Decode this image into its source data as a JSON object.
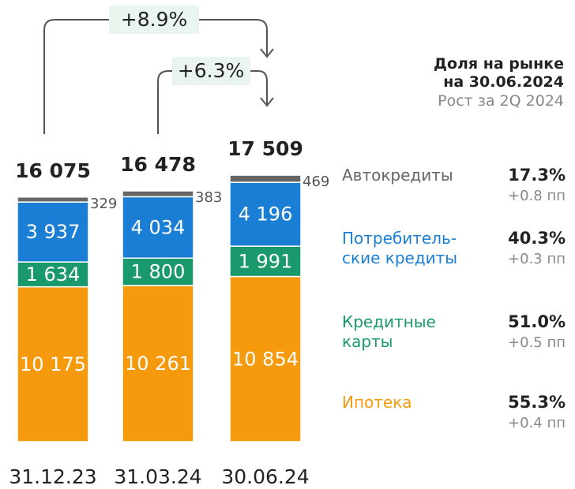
{
  "chart_data": {
    "type": "stacked_bar",
    "categories": [
      "31.12.23",
      "31.03.24",
      "30.06.24"
    ],
    "ylim": [
      0,
      18500
    ],
    "series": [
      {
        "name": "Ипотека",
        "color": "#f59a0c",
        "values": [
          10175,
          10261,
          10854
        ],
        "value_labels": [
          "10 175",
          "10 261",
          "10 854"
        ],
        "share": 55.3,
        "share_label": "55.3%",
        "growth": 0.4,
        "growth_label": "+0.4 пп"
      },
      {
        "name": "Кредитные\nкарты",
        "color": "#1a9a6c",
        "values": [
          1634,
          1800,
          1991
        ],
        "value_labels": [
          "1 634",
          "1 800",
          "1 991"
        ],
        "share": 51.0,
        "share_label": "51.0%",
        "growth": 0.5,
        "growth_label": "+0.5 пп"
      },
      {
        "name": "Потребитель-\nские кредиты",
        "color": "#1a7fd4",
        "values": [
          3937,
          4034,
          4196
        ],
        "value_labels": [
          "3 937",
          "4 034",
          "4 196"
        ],
        "share": 40.3,
        "share_label": "40.3%",
        "growth": 0.3,
        "growth_label": "+0.3 пп"
      },
      {
        "name": "Автокредиты",
        "color": "#666666",
        "values": [
          329,
          383,
          469
        ],
        "value_labels": [
          "329",
          "383",
          "469"
        ],
        "share": 17.3,
        "share_label": "17.3%",
        "growth": 0.8,
        "growth_label": "+0.8 пп"
      }
    ],
    "totals": [
      16075,
      16478,
      17509
    ],
    "total_labels": [
      "16 075",
      "16 478",
      "17 509"
    ],
    "annotations": [
      {
        "text": "+8.9%"
      },
      {
        "text": "+6.3%"
      }
    ],
    "legend_title": "Доля на рынке\nна 30.06.2024",
    "legend_subtitle": "Рост за 2Q 2024"
  }
}
